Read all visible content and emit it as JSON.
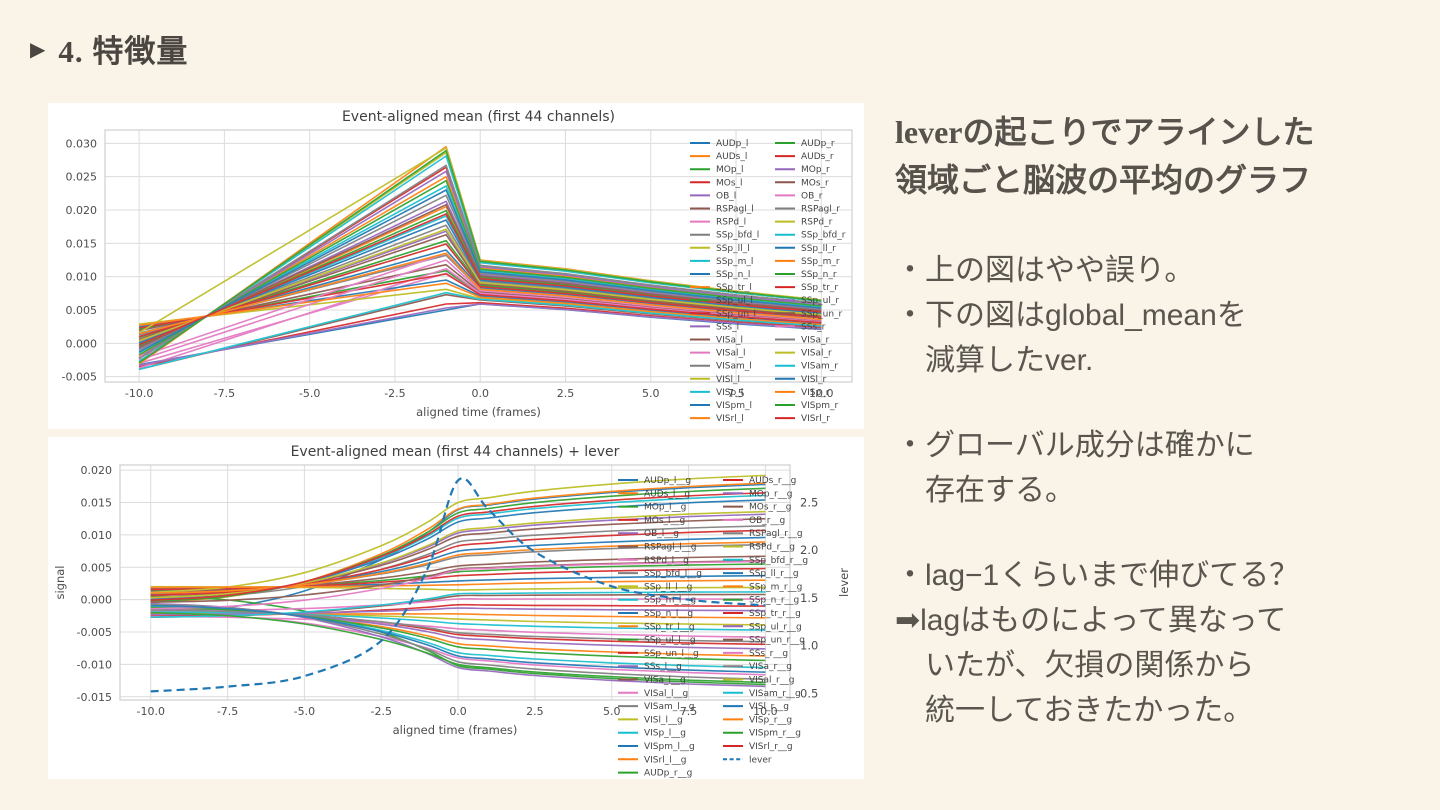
{
  "slide": {
    "marker": "▶",
    "title": "4. 特徴量",
    "background": "#f9f4e7",
    "text_color": "#55504a"
  },
  "notes": {
    "heading": [
      "leverの起こりでアラインした",
      "領域ごと脳波の平均のグラフ"
    ],
    "block1": [
      "・上の図はやや誤り。",
      "・下の図はglobal_meanを",
      "　減算したver."
    ],
    "block2": [
      "・グローバル成分は確かに",
      "　存在する。"
    ],
    "block3": [
      "・lag−1くらいまで伸びてる？",
      "➡lagはものによって異なって",
      "　いたが、欠損の関係から",
      "　統一しておきたかった。"
    ]
  },
  "palette": [
    "#1f77b4",
    "#ff7f0e",
    "#2ca02c",
    "#d62728",
    "#9467bd",
    "#8c564b",
    "#e377c2",
    "#7f7f7f",
    "#bcbd22",
    "#17becf"
  ],
  "chart_data": [
    {
      "type": "line",
      "title": "Event-aligned mean (first 44 channels)",
      "xlabel": "aligned time (frames)",
      "x_ticks": [
        -10.0,
        -7.5,
        -5.0,
        -2.5,
        0.0,
        2.5,
        5.0,
        7.5,
        10.0
      ],
      "y_ticks": [
        0.03,
        0.025,
        0.02,
        0.015,
        0.01,
        0.005,
        0.0,
        -0.005
      ],
      "xlim": [
        -11,
        10.9
      ],
      "ylim": [
        -0.0058,
        0.032
      ],
      "grid": true,
      "legend_position": "upper-right 2 columns no-frame",
      "channels": [
        "AUDp_l",
        "AUDs_l",
        "MOp_l",
        "MOs_l",
        "OB_l",
        "RSPagl_l",
        "RSPd_l",
        "SSp_bfd_l",
        "SSp_ll_l",
        "SSp_m_l",
        "SSp_n_l",
        "SSp_tr_l",
        "SSp_ul_l",
        "SSp_un_l",
        "SSs_l",
        "VISa_l",
        "VISal_l",
        "VISam_l",
        "VISl_l",
        "VISp_l",
        "VISpm_l",
        "VISrl_l",
        "AUDp_r",
        "AUDs_r",
        "MOp_r",
        "MOs_r",
        "OB_r",
        "RSPagl_r",
        "RSPd_r",
        "SSp_bfd_r",
        "SSp_ll_r",
        "SSp_m_r",
        "SSp_n_r",
        "SSp_tr_r",
        "SSp_ul_r",
        "SSp_un_r",
        "SSs_r",
        "VISa_r",
        "VISal_r",
        "VISam_r",
        "VISl_r",
        "VISp_r",
        "VISpm_r",
        "VISrl_r"
      ],
      "x_keys": [
        -10,
        -1,
        0,
        10
      ],
      "values_start": [
        -0.0032,
        -0.0006,
        0.0021,
        -0.0022,
        0.0005,
        -0.0039,
        -0.003,
        0.0015,
        -0.0028,
        -0.0002,
        0.0025,
        -0.0018,
        0.0009,
        -0.0035,
        -0.0008,
        0.0019,
        -0.0037,
        0.0002,
        0.0029,
        -0.0014,
        0.0013,
        -0.0031,
        -0.0004,
        0.0023,
        -0.0021,
        0.0006,
        -0.0025,
        -0.001,
        0.0016,
        -0.0027,
        0.0,
        0.0027,
        -0.0017,
        0.001,
        -0.0033,
        -0.0006,
        -0.002,
        -0.0023,
        0.0004,
        -0.0039,
        -0.0013,
        0.0014,
        -0.0029,
        -0.0002
      ],
      "values_peak_at_minus1": [
        0.005,
        0.0205,
        0.0109,
        0.0264,
        0.0168,
        0.0073,
        0.0105,
        0.0132,
        0.0286,
        0.0191,
        0.0095,
        0.025,
        0.0154,
        0.0059,
        0.0213,
        0.0118,
        0.0112,
        0.0177,
        0.0081,
        0.0236,
        0.014,
        0.0295,
        0.0199,
        0.0104,
        0.0258,
        0.0163,
        0.0125,
        0.0222,
        0.0293,
        0.0281,
        0.0185,
        0.009,
        0.0244,
        0.0149,
        0.0053,
        0.0208,
        0.0135,
        0.0267,
        0.0171,
        0.0076,
        0.023,
        0.0135,
        0.0289,
        0.0194
      ],
      "values_at_0": [
        0.0059,
        0.01,
        0.0074,
        0.0116,
        0.009,
        0.0065,
        0.0073,
        0.0081,
        0.0122,
        0.0097,
        0.0071,
        0.0113,
        0.0087,
        0.0061,
        0.0103,
        0.0077,
        0.0075,
        0.0093,
        0.0067,
        0.0109,
        0.0083,
        0.0125,
        0.0099,
        0.0073,
        0.0115,
        0.0089,
        0.0079,
        0.0105,
        0.0124,
        0.0121,
        0.0095,
        0.0069,
        0.0111,
        0.0085,
        0.0059,
        0.0101,
        0.0081,
        0.0117,
        0.0091,
        0.0066,
        0.0107,
        0.0081,
        0.0123,
        0.0097
      ],
      "values_at_10": [
        0.0021,
        0.0049,
        0.0032,
        0.006,
        0.0042,
        0.0025,
        0.0031,
        0.0036,
        0.0063,
        0.0046,
        0.0029,
        0.0057,
        0.004,
        0.0023,
        0.005,
        0.0033,
        0.0032,
        0.0044,
        0.0027,
        0.0054,
        0.0037,
        0.0065,
        0.0048,
        0.0031,
        0.0058,
        0.0041,
        0.0035,
        0.0052,
        0.0065,
        0.0063,
        0.0045,
        0.0028,
        0.0056,
        0.0039,
        0.0022,
        0.0049,
        0.0036,
        0.006,
        0.0043,
        0.0026,
        0.0053,
        0.0036,
        0.0064,
        0.0047
      ]
    },
    {
      "type": "line",
      "title": "Event-aligned mean (first 44 channels) + lever",
      "xlabel": "aligned time (frames)",
      "ylabel": "signal",
      "y2label": "lever",
      "x_ticks": [
        -10.0,
        -7.5,
        -5.0,
        -2.5,
        0.0,
        2.5,
        5.0,
        7.5,
        10.0
      ],
      "y_ticks": [
        0.02,
        0.015,
        0.01,
        0.005,
        0.0,
        -0.005,
        -0.01,
        -0.015
      ],
      "y2_ticks": [
        0.5,
        1.0,
        1.5,
        2.0,
        2.5
      ],
      "xlim": [
        -11,
        10.8
      ],
      "ylim": [
        -0.0155,
        0.0208
      ],
      "y2lim": [
        0.43,
        2.89
      ],
      "grid": true,
      "legend_position": "upper-right 2 columns no-frame",
      "channels": [
        "AUDp_l__g",
        "AUDs_l__g",
        "MOp_l__g",
        "MOs_l__g",
        "OB_l__g",
        "RSPagl_l__g",
        "RSPd_l__g",
        "SSp_bfd_l__g",
        "SSp_ll_l__g",
        "SSp_m_l__g",
        "SSp_n_l__g",
        "SSp_tr_l__g",
        "SSp_ul_l__g",
        "SSp_un_l__g",
        "SSs_l__g",
        "VISa_l__g",
        "VISal_l__g",
        "VISam_l__g",
        "VISl_l__g",
        "VISp_l__g",
        "VISpm_l__g",
        "VISrl_l__g",
        "AUDp_r__g",
        "AUDs_r__g",
        "MOp_r__g",
        "MOs_r__g",
        "OB_r__g",
        "RSPagl_r__g",
        "RSPd_r__g",
        "SSp_bfd_r__g",
        "SSp_ll_r__g",
        "SSp_m_r__g",
        "SSp_n_r__g",
        "SSp_tr_r__g",
        "SSp_ul_r__g",
        "SSp_un_r__g",
        "SSs_r__g",
        "VISa_r__g",
        "VISal_r__g",
        "VISam_r__g",
        "VISl_r__g",
        "VISp_r__g",
        "VISpm_r__g",
        "VISrl_r__g"
      ],
      "x_keys": [
        -10,
        0,
        10
      ],
      "values_start": [
        -0.0022,
        -0.0004,
        0.0015,
        -0.0015,
        0.0004,
        -0.0027,
        -0.0021,
        0.0011,
        -0.002,
        -0.0001,
        0.0018,
        -0.0013,
        0.0006,
        -0.0025,
        -0.0006,
        0.0013,
        -0.0026,
        0.0001,
        0.002,
        -0.001,
        0.0009,
        -0.0022,
        -0.0003,
        0.0016,
        -0.0015,
        0.0004,
        -0.0018,
        -0.0007,
        0.0011,
        -0.0019,
        0.0,
        0.0019,
        -0.0012,
        0.0007,
        -0.0023,
        -0.0004,
        -0.0014,
        -0.0016,
        0.0003,
        -0.0027,
        -0.0009,
        0.001,
        -0.002,
        -0.0001
      ],
      "values_at_0": [
        0.0139,
        0.014,
        0.0043,
        -0.0054,
        0.0103,
        0.0006,
        -0.009,
        0.0066,
        -0.003,
        0.0126,
        0.0029,
        -0.0068,
        -0.0102,
        -0.0008,
        -0.0105,
        0.0052,
        -0.0045,
        0.0089,
        0.0015,
        -0.0082,
        0.0075,
        -0.0022,
        0.0134,
        0.0037,
        -0.0059,
        0.0098,
        0.0001,
        -0.0096,
        0.015,
        -0.0037,
        0.012,
        0.0023,
        -0.0073,
        0.0083,
        -0.0013,
        0.0047,
        0.0046,
        -0.0051,
        0.0106,
        0.0009,
        -0.0087,
        0.0069,
        -0.01,
        0.0129
      ],
      "values_at_10": [
        0.0178,
        0.018,
        0.0055,
        -0.0069,
        0.0132,
        0.0008,
        -0.0116,
        0.0085,
        -0.0039,
        0.0161,
        0.0037,
        -0.0087,
        -0.0131,
        -0.001,
        -0.0134,
        0.0067,
        -0.0058,
        0.0114,
        0.0019,
        -0.0105,
        0.0096,
        -0.0028,
        0.0172,
        0.0048,
        -0.0076,
        0.0125,
        0.0001,
        -0.0123,
        0.0192,
        -0.0047,
        0.0154,
        0.003,
        -0.0094,
        0.0107,
        -0.0017,
        0.006,
        0.0059,
        -0.0065,
        0.0136,
        0.0012,
        -0.0112,
        0.0089,
        -0.0128,
        0.0165
      ],
      "lever": {
        "name": "lever",
        "style": "dashed",
        "color": "#1f77b4",
        "axis": "right",
        "x": [
          -10,
          -7.5,
          -5,
          -2.5,
          -1,
          0,
          1,
          2.5,
          5,
          7.5,
          10
        ],
        "values": [
          0.52,
          0.57,
          0.68,
          1.05,
          1.8,
          2.73,
          2.42,
          1.98,
          1.62,
          1.48,
          1.42
        ]
      }
    }
  ]
}
